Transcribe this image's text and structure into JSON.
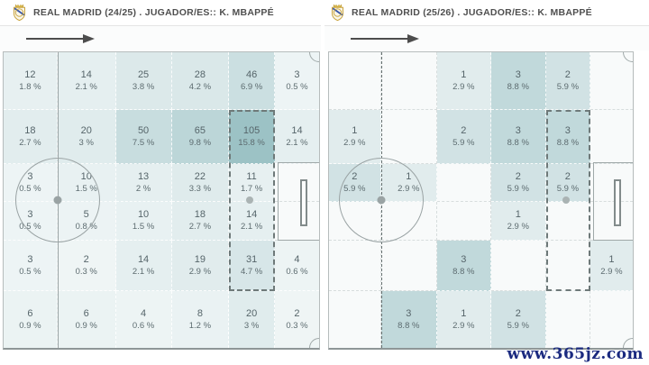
{
  "watermark": {
    "text": "www.365jz.com",
    "color": "#1b2a80"
  },
  "heat": {
    "base_color": "#9cc2c5",
    "empty_color": "#f8fafa",
    "scale_max_pct": 15.8,
    "min_tint": 0.15,
    "text_color": "#57666a"
  },
  "panels": [
    {
      "title": "REAL MADRID (24/25) . JUGADOR/ES:: K. MBAPPÉ"
    },
    {
      "title": "REAL MADRID (25/26) . JUGADOR/ES:: K. MBAPPÉ"
    }
  ],
  "chart_data": [
    {
      "type": "heatmap",
      "title": "REAL MADRID (24/25) . JUGADOR/ES:: K. MBAPPÉ",
      "grid": {
        "rows": 6,
        "cols": 6,
        "surface": "football pitch, attacking left to right"
      },
      "value_format": "count and percent of total",
      "highlighted_region": "column 5, rows 2-5 (dark dashed outline)",
      "zones": [
        [
          {
            "count": 12,
            "pct": 1.8
          },
          {
            "count": 14,
            "pct": 2.1
          },
          {
            "count": 25,
            "pct": 3.8
          },
          {
            "count": 28,
            "pct": 4.2
          },
          {
            "count": 46,
            "pct": 6.9
          },
          {
            "count": 3,
            "pct": 0.5
          }
        ],
        [
          {
            "count": 18,
            "pct": 2.7
          },
          {
            "count": 20,
            "pct": 3
          },
          {
            "count": 50,
            "pct": 7.5
          },
          {
            "count": 65,
            "pct": 9.8
          },
          {
            "count": 105,
            "pct": 15.8
          },
          {
            "count": 14,
            "pct": 2.1
          }
        ],
        [
          {
            "count": 3,
            "pct": 0.5
          },
          {
            "count": 10,
            "pct": 1.5
          },
          {
            "count": 13,
            "pct": 2
          },
          {
            "count": 22,
            "pct": 3.3
          },
          {
            "count": 11,
            "pct": 1.7
          },
          null
        ],
        [
          {
            "count": 3,
            "pct": 0.5
          },
          {
            "count": 5,
            "pct": 0.8
          },
          {
            "count": 10,
            "pct": 1.5
          },
          {
            "count": 18,
            "pct": 2.7
          },
          {
            "count": 14,
            "pct": 2.1
          },
          null
        ],
        [
          {
            "count": 3,
            "pct": 0.5
          },
          {
            "count": 2,
            "pct": 0.3
          },
          {
            "count": 14,
            "pct": 2.1
          },
          {
            "count": 19,
            "pct": 2.9
          },
          {
            "count": 31,
            "pct": 4.7
          },
          {
            "count": 4,
            "pct": 0.6
          }
        ],
        [
          {
            "count": 6,
            "pct": 0.9
          },
          {
            "count": 6,
            "pct": 0.9
          },
          {
            "count": 4,
            "pct": 0.6
          },
          {
            "count": 8,
            "pct": 1.2
          },
          {
            "count": 20,
            "pct": 3
          },
          {
            "count": 2,
            "pct": 0.3
          }
        ]
      ]
    },
    {
      "type": "heatmap",
      "title": "REAL MADRID (25/26) . JUGADOR/ES:: K. MBAPPÉ",
      "grid": {
        "rows": 6,
        "cols": 6,
        "surface": "football pitch, attacking left to right"
      },
      "value_format": "count and percent of total",
      "highlighted_region": "column 5, rows 2-5 (dark dashed outline)",
      "zones": [
        [
          null,
          null,
          {
            "count": 1,
            "pct": 2.9
          },
          {
            "count": 3,
            "pct": 8.8
          },
          {
            "count": 2,
            "pct": 5.9
          },
          null
        ],
        [
          {
            "count": 1,
            "pct": 2.9
          },
          null,
          {
            "count": 2,
            "pct": 5.9
          },
          {
            "count": 3,
            "pct": 8.8
          },
          {
            "count": 3,
            "pct": 8.8
          },
          null
        ],
        [
          {
            "count": 2,
            "pct": 5.9
          },
          {
            "count": 1,
            "pct": 2.9
          },
          null,
          {
            "count": 2,
            "pct": 5.9
          },
          {
            "count": 2,
            "pct": 5.9
          },
          null
        ],
        [
          null,
          null,
          null,
          {
            "count": 1,
            "pct": 2.9
          },
          null,
          null
        ],
        [
          null,
          null,
          {
            "count": 3,
            "pct": 8.8
          },
          null,
          null,
          {
            "count": 1,
            "pct": 2.9
          }
        ],
        [
          null,
          {
            "count": 3,
            "pct": 8.8
          },
          {
            "count": 1,
            "pct": 2.9
          },
          {
            "count": 2,
            "pct": 5.9
          },
          null,
          null
        ]
      ]
    }
  ]
}
